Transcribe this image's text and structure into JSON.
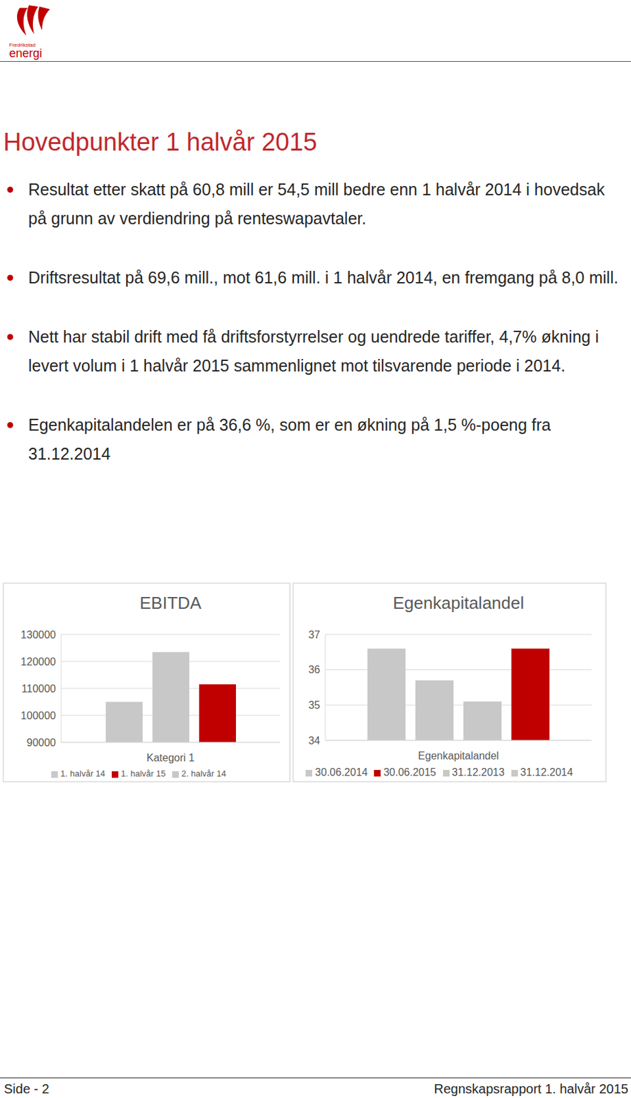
{
  "header": {
    "logo_text": [
      "Fredrikstad",
      "energi"
    ]
  },
  "title": "Hovedpunkter 1 halvår 2015",
  "bullets": [
    "Resultat etter skatt på 60,8 mill er 54,5 mill bedre enn 1 halvår 2014 i hovedsak på grunn av verdiendring på renteswapavtaler.",
    "Driftsresultat på 69,6 mill., mot 61,6 mill. i 1 halvår 2014, en fremgang på 8,0 mill.",
    "Nett har stabil drift med få driftsforstyrrelser og uendrede tariffer, 4,7% økning i levert volum i 1 halvår 2015 sammenlignet mot tilsvarende periode i 2014.",
    "Egenkapitalandelen er på 36,6 %, som er en økning på 1,5 %-poeng fra 31.12.2014"
  ],
  "chart_data": [
    {
      "type": "bar",
      "title": "EBITDA",
      "categories": [
        "Kategori 1"
      ],
      "series": [
        {
          "name": "1. halvår 14",
          "color": "#c8c8c8",
          "values": [
            105000
          ]
        },
        {
          "name": "2. halvår 14",
          "color": "#c8c8c8",
          "values": [
            123500
          ]
        },
        {
          "name": "1. halvår 15",
          "color": "#c00000",
          "values": [
            111500
          ]
        }
      ],
      "ylim": [
        90000,
        130000
      ],
      "yticks": [
        90000,
        100000,
        110000,
        120000,
        130000
      ],
      "grid": true,
      "legend": "bottom"
    },
    {
      "type": "bar",
      "title": "Egenkapitalandel",
      "categories": [
        "Egenkapitalandel"
      ],
      "series": [
        {
          "name": "31.12.2013",
          "color": "#c8c8c8",
          "values": [
            36.6
          ]
        },
        {
          "name": "30.06.2014",
          "color": "#c8c8c8",
          "values": [
            35.7
          ]
        },
        {
          "name": "31.12.2014",
          "color": "#c8c8c8",
          "values": [
            35.1
          ]
        },
        {
          "name": "30.06.2015",
          "color": "#c00000",
          "values": [
            36.6
          ]
        }
      ],
      "ylim": [
        34,
        37
      ],
      "yticks": [
        34,
        35,
        36,
        37
      ],
      "grid": true,
      "legend": "bottom"
    }
  ],
  "footer": {
    "left": "Side - 2",
    "right": "Regnskapsrapport 1. halvår 2015"
  }
}
